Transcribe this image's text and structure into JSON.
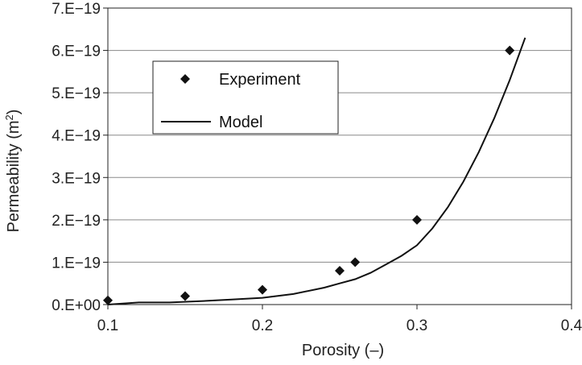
{
  "chart_data": {
    "type": "scatter",
    "title": "",
    "xlabel": "Porosity (–)",
    "ylabel_main": "Permeability (m",
    "ylabel_sup": "2",
    "ylabel_close": ")",
    "xlim": [
      0.1,
      0.4
    ],
    "ylim": [
      0,
      7e-19
    ],
    "x_ticks": [
      0.1,
      0.2,
      0.3,
      0.4
    ],
    "x_tick_labels": [
      "0.1",
      "0.2",
      "0.3",
      "0.4"
    ],
    "y_ticks": [
      0,
      1e-19,
      2e-19,
      3e-19,
      4e-19,
      5e-19,
      6e-19,
      7e-19
    ],
    "y_tick_labels": [
      "0.E+00",
      "1.E−19",
      "2.E−19",
      "3.E−19",
      "4.E−19",
      "5.E−19",
      "6.E−19",
      "7.E−19"
    ],
    "grid": "horizontal",
    "legend_position": "top-left",
    "series": [
      {
        "name": "Experiment",
        "kind": "scatter",
        "marker": "diamond",
        "color": "#111111",
        "x": [
          0.1,
          0.15,
          0.2,
          0.25,
          0.26,
          0.3,
          0.36
        ],
        "y": [
          1e-20,
          2e-20,
          3.5e-20,
          8e-20,
          1e-19,
          2e-19,
          6e-19
        ]
      },
      {
        "name": "Model",
        "kind": "line",
        "color": "#111111",
        "x": [
          0.1,
          0.12,
          0.14,
          0.16,
          0.18,
          0.2,
          0.22,
          0.24,
          0.25,
          0.26,
          0.27,
          0.28,
          0.29,
          0.3,
          0.31,
          0.32,
          0.33,
          0.34,
          0.35,
          0.36,
          0.37
        ],
        "y": [
          0.0,
          5e-21,
          5e-21,
          8e-21,
          1.2e-20,
          1.6e-20,
          2.5e-20,
          4e-20,
          5e-20,
          6e-20,
          7.5e-20,
          9.5e-20,
          1.15e-19,
          1.4e-19,
          1.8e-19,
          2.3e-19,
          2.9e-19,
          3.6e-19,
          4.4e-19,
          5.3e-19,
          6.3e-19
        ]
      }
    ]
  }
}
